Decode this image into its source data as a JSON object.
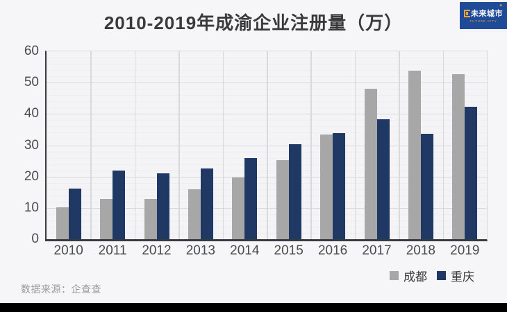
{
  "page": {
    "title": "2010-2019年成渝企业注册量（万）",
    "source_note": "数据来源：企查查"
  },
  "logo": {
    "brand_cn": "未来城市",
    "brand_en": "FUTURE CITY",
    "bg_color": "#1e4a97",
    "accent_color": "#f2a23a",
    "text_color": "#ffffff"
  },
  "colors": {
    "page_bg": "#f6f6f8",
    "plot_bg": "#f4f4f6",
    "axis": "#363b42",
    "grid_major": "#d9d9dd",
    "grid_minor": "#eeeef2",
    "series_chengdu": "#a7a7a7",
    "series_chongqing": "#1f3864",
    "black_bar": "#000000"
  },
  "chart_data": {
    "type": "bar",
    "title": "2010-2019年成渝企业注册量（万）",
    "categories": [
      "2010",
      "2011",
      "2012",
      "2013",
      "2014",
      "2015",
      "2016",
      "2017",
      "2018",
      "2019"
    ],
    "series": [
      {
        "name": "成都",
        "color": "#a7a7a7",
        "values": [
          10.1,
          12.9,
          12.9,
          16.0,
          19.7,
          25.2,
          33.5,
          48.0,
          53.8,
          52.8
        ]
      },
      {
        "name": "重庆",
        "color": "#1f3864",
        "values": [
          16.2,
          22.0,
          21.1,
          22.6,
          26.0,
          30.4,
          33.9,
          38.4,
          33.6,
          42.3
        ]
      }
    ],
    "xlabel": "",
    "ylabel": "",
    "ylim": [
      0,
      60
    ],
    "yticks": [
      0,
      10,
      20,
      30,
      40,
      50,
      60
    ],
    "minor_grid_step": 2,
    "grid": true,
    "legend_position": "bottom-right"
  }
}
